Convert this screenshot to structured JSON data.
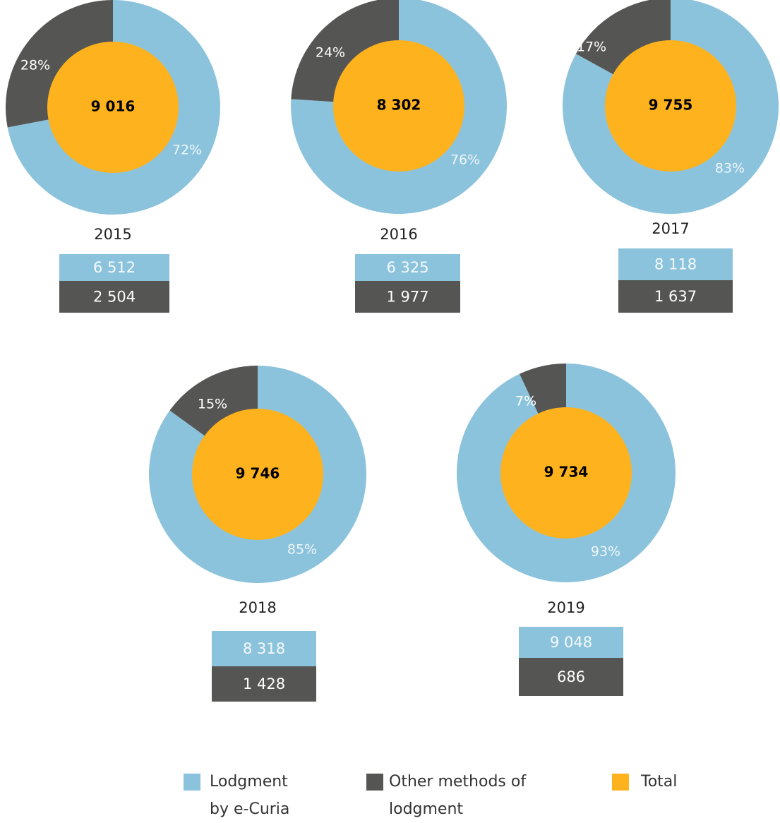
{
  "chart_data": [
    {
      "type": "donut",
      "title": "2015",
      "values": [
        72,
        28
      ],
      "value_labels": [
        "72%",
        "28%"
      ],
      "total": "9 016",
      "counts": [
        "6 512",
        "2 504"
      ]
    },
    {
      "type": "donut",
      "title": "2016",
      "values": [
        76,
        24
      ],
      "value_labels": [
        "76%",
        "24%"
      ],
      "total": "8 302",
      "counts": [
        "6 325",
        "1 977"
      ]
    },
    {
      "type": "donut",
      "title": "2017",
      "values": [
        83,
        17
      ],
      "value_labels": [
        "83%",
        "17%"
      ],
      "total": "9 755",
      "counts": [
        "8 118",
        "1 637"
      ]
    },
    {
      "type": "donut",
      "title": "2018",
      "values": [
        85,
        15
      ],
      "value_labels": [
        "85%",
        "15%"
      ],
      "total": "9 746",
      "counts": [
        "8 318",
        "1 428"
      ]
    },
    {
      "type": "donut",
      "title": "2019",
      "values": [
        93,
        7
      ],
      "value_labels": [
        "93%",
        "7%"
      ],
      "total": "9 734",
      "counts": [
        "9 048",
        "686"
      ]
    }
  ],
  "legend": {
    "items": [
      {
        "label": "Lodgment by e-Curia",
        "color": "#8cc3dc"
      },
      {
        "label": "Other methods of lodgment",
        "color": "#555553"
      },
      {
        "label": "Total",
        "color": "#fdb21e"
      }
    ]
  }
}
